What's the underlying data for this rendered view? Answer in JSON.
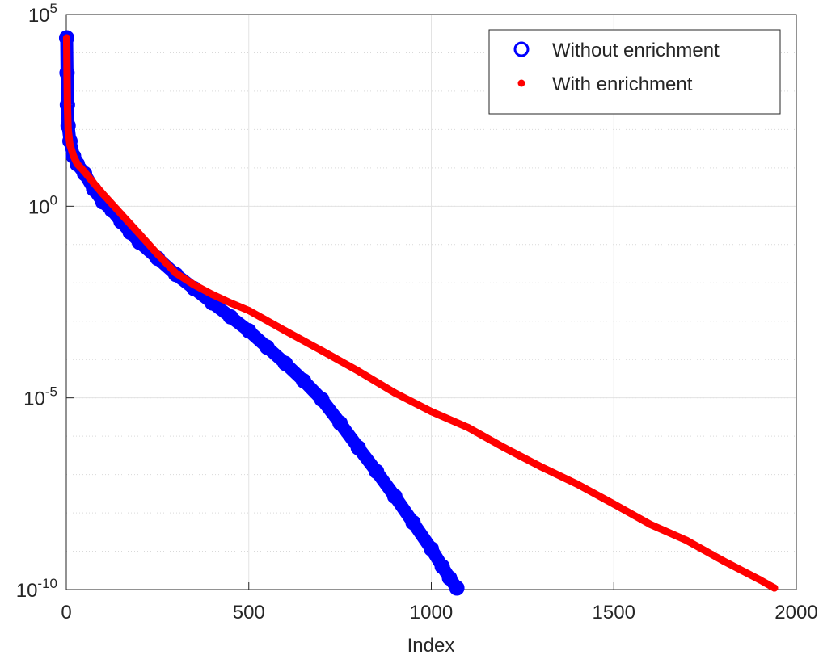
{
  "chart_data": {
    "type": "scatter",
    "xlabel": "Index",
    "xlim": [
      0,
      2000
    ],
    "xticks": [
      0,
      500,
      1000,
      1500,
      2000
    ],
    "ylim": [
      1e-10,
      100000
    ],
    "log_y": true,
    "yticks": [
      {
        "value": 1e-10,
        "label": "10^-10"
      },
      {
        "value": 1e-05,
        "label": "10^-5"
      },
      {
        "value": 1,
        "label": "10^0"
      },
      {
        "value": 100000,
        "label": "10^5"
      }
    ],
    "grid": true,
    "minor_grid": true,
    "legend": "northeast",
    "series": [
      {
        "name": "Without enrichment",
        "color": "#0000ff",
        "marker": "open-circle",
        "x": [
          1,
          2,
          3,
          5,
          10,
          20,
          30,
          50,
          75,
          100,
          125,
          150,
          175,
          200,
          250,
          300,
          350,
          400,
          450,
          500,
          550,
          600,
          650,
          700,
          750,
          800,
          850,
          900,
          950,
          1000,
          1030,
          1050,
          1070
        ],
        "values": [
          24500,
          3000,
          440,
          126,
          50,
          20,
          12.6,
          7.1,
          2.8,
          1.3,
          0.79,
          0.4,
          0.21,
          0.115,
          0.044,
          0.0166,
          0.0071,
          0.003,
          0.0013,
          0.00056,
          0.00021,
          7.9e-05,
          2.8e-05,
          9.1e-06,
          2.2e-06,
          5e-07,
          1.2e-07,
          2.7e-08,
          5.6e-09,
          1.15e-09,
          4e-10,
          2e-10,
          1.1e-10
        ]
      },
      {
        "name": "With enrichment",
        "color": "#ff0000",
        "marker": "filled-dot",
        "x": [
          1,
          2,
          3,
          5,
          10,
          20,
          30,
          50,
          75,
          100,
          150,
          200,
          250,
          300,
          350,
          400,
          450,
          500,
          600,
          700,
          800,
          900,
          1000,
          1100,
          1200,
          1300,
          1400,
          1500,
          1600,
          1700,
          1800,
          1900,
          1940
        ],
        "values": [
          24500,
          3000,
          440,
          100,
          40,
          20,
          12.6,
          7.9,
          4,
          2.1,
          0.63,
          0.19,
          0.056,
          0.018,
          0.0089,
          0.005,
          0.003,
          0.0019,
          0.00056,
          0.00017,
          5e-05,
          1.35e-05,
          4.4e-06,
          1.7e-06,
          5e-07,
          1.6e-07,
          5.6e-08,
          1.7e-08,
          5e-09,
          1.9e-09,
          5.6e-10,
          1.8e-10,
          1.1e-10
        ]
      }
    ]
  }
}
